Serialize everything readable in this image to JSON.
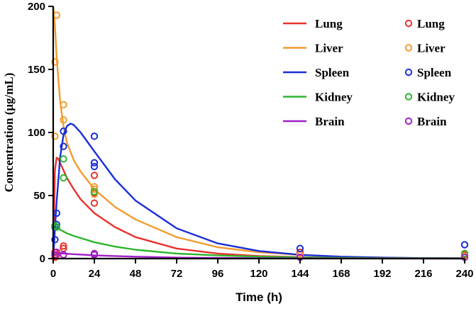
{
  "chart_data": {
    "type": "line",
    "title": "",
    "xlabel": "Time (h)",
    "ylabel": "Concentration (μg/mL)",
    "xlim": [
      0,
      240
    ],
    "ylim": [
      0,
      200
    ],
    "xticks": [
      0,
      24,
      48,
      72,
      96,
      120,
      144,
      168,
      192,
      216,
      240
    ],
    "yticks": [
      0,
      50,
      100,
      150,
      200
    ],
    "xtick_labels": [
      "0",
      "24",
      "48",
      "72",
      "96",
      "120",
      "144",
      "168",
      "192",
      "216",
      "240"
    ],
    "ytick_labels": [
      "0",
      "50",
      "100",
      "150",
      "200"
    ],
    "grid": false,
    "legend_position": "top-right",
    "series": [
      {
        "name": "Lung",
        "color": "#e8312e",
        "fit_x": [
          0,
          1,
          2,
          3,
          4,
          6,
          8,
          12,
          16,
          24,
          36,
          48,
          72,
          96,
          120,
          144,
          168,
          192,
          216,
          240
        ],
        "fit_y": [
          0,
          70,
          80,
          79,
          76,
          70,
          64,
          55,
          47,
          36,
          25,
          17,
          8,
          4,
          2,
          1.2,
          0.6,
          0.3,
          0.2,
          0.1
        ],
        "points_x": [
          1,
          1,
          2,
          6,
          6,
          24,
          24,
          24,
          144,
          144,
          240,
          240
        ],
        "points_y": [
          5,
          1,
          3,
          10,
          8,
          66,
          52,
          44,
          5,
          3,
          3,
          2
        ]
      },
      {
        "name": "Liver",
        "color": "#f39a2e",
        "fit_x": [
          0,
          1,
          2,
          4,
          6,
          8,
          12,
          16,
          24,
          36,
          48,
          72,
          96,
          120,
          144,
          168,
          192,
          216,
          240
        ],
        "fit_y": [
          200,
          185,
          160,
          125,
          105,
          92,
          78,
          69,
          55,
          41,
          31,
          17,
          9,
          5,
          3,
          1.5,
          0.8,
          0.4,
          0.2
        ],
        "points_x": [
          1,
          1,
          2,
          6,
          6,
          24,
          24,
          24,
          144,
          240
        ],
        "points_y": [
          97,
          156,
          193,
          122,
          110,
          57,
          55,
          51,
          3,
          2
        ]
      },
      {
        "name": "Spleen",
        "color": "#1a2ed9",
        "fit_x": [
          0,
          2,
          4,
          6,
          8,
          10,
          12,
          16,
          24,
          36,
          48,
          72,
          96,
          120,
          144,
          168,
          192,
          216,
          240
        ],
        "fit_y": [
          0,
          45,
          80,
          98,
          105,
          107,
          106,
          100,
          85,
          63,
          46,
          24,
          12,
          6,
          3,
          1.5,
          0.8,
          0.4,
          0.2
        ],
        "points_x": [
          1,
          1,
          2,
          2,
          6,
          6,
          24,
          24,
          24,
          144,
          240
        ],
        "points_y": [
          15,
          25,
          36,
          27,
          101,
          89,
          97,
          76,
          73,
          8,
          11
        ]
      },
      {
        "name": "Kidney",
        "color": "#2db52d",
        "fit_x": [
          0,
          2,
          4,
          8,
          12,
          24,
          36,
          48,
          72,
          96,
          120,
          144,
          168,
          192,
          216,
          240
        ],
        "fit_y": [
          26,
          25,
          23,
          20,
          18,
          13,
          9.5,
          7,
          4,
          2.5,
          1.5,
          1,
          0.6,
          0.4,
          0.3,
          0.2
        ],
        "points_x": [
          1,
          2,
          6,
          6,
          24,
          240
        ],
        "points_y": [
          26,
          25,
          79,
          64,
          53,
          4
        ]
      },
      {
        "name": "Brain",
        "color": "#a020c8",
        "fit_x": [
          0,
          2,
          4,
          8,
          12,
          24,
          36,
          48,
          72,
          96,
          120,
          144,
          168,
          192,
          216,
          240
        ],
        "fit_y": [
          5,
          4.5,
          4.2,
          3.8,
          3.5,
          2.6,
          2.0,
          1.5,
          0.8,
          0.5,
          0.3,
          0.2,
          0.1,
          0.1,
          0.05,
          0.05
        ],
        "points_x": [
          1,
          2,
          6,
          24,
          24,
          144,
          240
        ],
        "points_y": [
          3,
          5,
          3,
          3,
          4,
          1,
          1
        ]
      }
    ]
  }
}
